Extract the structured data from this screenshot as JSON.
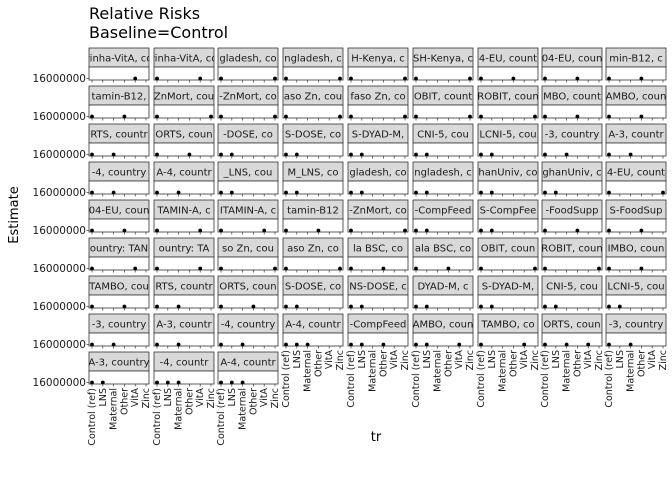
{
  "chart_data": {
    "type": "scatter",
    "title": "Relative Risks",
    "subtitle": "Baseline=Control",
    "xlabel": "tr",
    "ylabel": "Estimate",
    "x_categories": [
      "Control (ref)",
      "LNS",
      "Maternal",
      "Other",
      "VitA",
      "Zinc"
    ],
    "y_tick_label": "16000000",
    "grid": false,
    "legend": "none",
    "panels": [
      {
        "strip": "rinha-VitA, co",
        "points": [
          {
            "x": "VitA",
            "y": 16000000
          }
        ]
      },
      {
        "strip": "rinha-VitA, co",
        "points": [
          {
            "x": "Control (ref)",
            "y": 16000000
          },
          {
            "x": "VitA",
            "y": 16000000
          }
        ]
      },
      {
        "strip": "gladesh, co",
        "points": [
          {
            "x": "Control (ref)",
            "y": 16000000
          },
          {
            "x": "Zinc",
            "y": 16000000
          }
        ]
      },
      {
        "strip": "ngladesh, c",
        "points": [
          {
            "x": "Control (ref)",
            "y": 16000000
          },
          {
            "x": "Zinc",
            "y": 16000000
          }
        ]
      },
      {
        "strip": "H-Kenya, c",
        "points": [
          {
            "x": "Control (ref)",
            "y": 16000000
          },
          {
            "x": "Zinc",
            "y": 16000000
          }
        ]
      },
      {
        "strip": "SH-Kenya, c",
        "points": [
          {
            "x": "Control (ref)",
            "y": 16000000
          },
          {
            "x": "Zinc",
            "y": 16000000
          }
        ]
      },
      {
        "strip": "4-EU, count",
        "points": [
          {
            "x": "Control (ref)",
            "y": 16000000
          },
          {
            "x": "Other",
            "y": 16000000
          }
        ]
      },
      {
        "strip": "04-EU, coun",
        "points": [
          {
            "x": "Control (ref)",
            "y": 16000000
          },
          {
            "x": "Other",
            "y": 16000000
          }
        ]
      },
      {
        "strip": "min-B12, c",
        "points": [
          {
            "x": "Control (ref)",
            "y": 16000000
          },
          {
            "x": "Other",
            "y": 16000000
          }
        ]
      },
      {
        "strip": "tamin-B12,",
        "points": [
          {
            "x": "Control (ref)",
            "y": 16000000
          },
          {
            "x": "Other",
            "y": 16000000
          }
        ]
      },
      {
        "strip": "ZnMort, cou",
        "points": [
          {
            "x": "Control (ref)",
            "y": 16000000
          },
          {
            "x": "Zinc",
            "y": 16000000
          }
        ]
      },
      {
        "strip": "-ZnMort, co",
        "points": [
          {
            "x": "Control (ref)",
            "y": 16000000
          },
          {
            "x": "Zinc",
            "y": 16000000
          }
        ]
      },
      {
        "strip": "aso Zn, cou",
        "points": [
          {
            "x": "Control (ref)",
            "y": 16000000
          },
          {
            "x": "Zinc",
            "y": 16000000
          }
        ]
      },
      {
        "strip": "faso Zn, co",
        "points": [
          {
            "x": "Control (ref)",
            "y": 16000000
          },
          {
            "x": "Zinc",
            "y": 16000000
          }
        ]
      },
      {
        "strip": "OBIT, count",
        "points": [
          {
            "x": "Control (ref)",
            "y": 16000000
          },
          {
            "x": "Zinc",
            "y": 16000000
          }
        ]
      },
      {
        "strip": "ROBIT, coun",
        "points": [
          {
            "x": "Control (ref)",
            "y": 16000000
          },
          {
            "x": "Zinc",
            "y": 16000000
          }
        ]
      },
      {
        "strip": "MBO, count",
        "points": [
          {
            "x": "Control (ref)",
            "y": 16000000
          },
          {
            "x": "Other",
            "y": 16000000
          }
        ]
      },
      {
        "strip": "AMBO, coun",
        "points": [
          {
            "x": "Control (ref)",
            "y": 16000000
          },
          {
            "x": "Other",
            "y": 16000000
          }
        ]
      },
      {
        "strip": "RTS, countr",
        "points": [
          {
            "x": "Control (ref)",
            "y": 16000000
          },
          {
            "x": "Maternal",
            "y": 16000000
          }
        ]
      },
      {
        "strip": "ORTS, coun",
        "points": [
          {
            "x": "Control (ref)",
            "y": 16000000
          },
          {
            "x": "Other",
            "y": 16000000
          }
        ]
      },
      {
        "strip": "-DOSE, co",
        "points": [
          {
            "x": "Control (ref)",
            "y": 16000000
          },
          {
            "x": "LNS",
            "y": 16000000
          }
        ]
      },
      {
        "strip": "S-DOSE, co",
        "points": [
          {
            "x": "Control (ref)",
            "y": 16000000
          },
          {
            "x": "LNS",
            "y": 16000000
          }
        ]
      },
      {
        "strip": "S-DYAD-M,",
        "points": [
          {
            "x": "Control (ref)",
            "y": 16000000
          },
          {
            "x": "LNS",
            "y": 16000000
          }
        ]
      },
      {
        "strip": "CNI-5, cou",
        "points": [
          {
            "x": "Control (ref)",
            "y": 16000000
          },
          {
            "x": "LNS",
            "y": 16000000
          }
        ]
      },
      {
        "strip": "LCNI-5, cou",
        "points": [
          {
            "x": "Control (ref)",
            "y": 16000000
          },
          {
            "x": "LNS",
            "y": 16000000
          }
        ]
      },
      {
        "strip": "-3, country",
        "points": [
          {
            "x": "Control (ref)",
            "y": 16000000
          },
          {
            "x": "Maternal",
            "y": 16000000
          }
        ]
      },
      {
        "strip": "A-3, countr",
        "points": [
          {
            "x": "Control (ref)",
            "y": 16000000
          },
          {
            "x": "Maternal",
            "y": 16000000
          }
        ]
      },
      {
        "strip": "-4, country",
        "points": [
          {
            "x": "Control (ref)",
            "y": 16000000
          },
          {
            "x": "Maternal",
            "y": 16000000
          }
        ]
      },
      {
        "strip": "A-4, countr",
        "points": [
          {
            "x": "Control (ref)",
            "y": 16000000
          },
          {
            "x": "Maternal",
            "y": 16000000
          }
        ]
      },
      {
        "strip": "_LNS, cou",
        "points": [
          {
            "x": "Control (ref)",
            "y": 16000000
          },
          {
            "x": "LNS",
            "y": 16000000
          }
        ]
      },
      {
        "strip": "M_LNS, co",
        "points": [
          {
            "x": "Control (ref)",
            "y": 16000000
          },
          {
            "x": "LNS",
            "y": 16000000
          }
        ]
      },
      {
        "strip": "gladesh, co",
        "points": [
          {
            "x": "Control (ref)",
            "y": 16000000
          },
          {
            "x": "LNS",
            "y": 16000000
          }
        ]
      },
      {
        "strip": "ngladesh, c",
        "points": [
          {
            "x": "Control (ref)",
            "y": 16000000
          },
          {
            "x": "LNS",
            "y": 16000000
          }
        ]
      },
      {
        "strip": "hanUniv, co",
        "points": [
          {
            "x": "Control (ref)",
            "y": 16000000
          },
          {
            "x": "LNS",
            "y": 16000000
          }
        ]
      },
      {
        "strip": "ghanUniv, c",
        "points": [
          {
            "x": "Control (ref)",
            "y": 16000000
          },
          {
            "x": "LNS",
            "y": 16000000
          }
        ]
      },
      {
        "strip": "4-EU, count",
        "points": [
          {
            "x": "Control (ref)",
            "y": 16000000
          },
          {
            "x": "Zinc",
            "y": 16000000
          }
        ]
      },
      {
        "strip": "04-EU, coun",
        "points": [
          {
            "x": "Control (ref)",
            "y": 16000000
          },
          {
            "x": "Other",
            "y": 16000000
          }
        ]
      },
      {
        "strip": "TAMIN-A, c",
        "points": [
          {
            "x": "Control (ref)",
            "y": 16000000
          },
          {
            "x": "VitA",
            "y": 16000000
          }
        ]
      },
      {
        "strip": "ITAMIN-A, c",
        "points": [
          {
            "x": "Control (ref)",
            "y": 16000000
          },
          {
            "x": "VitA",
            "y": 16000000
          }
        ]
      },
      {
        "strip": "tamin-B12",
        "points": [
          {
            "x": "Control (ref)",
            "y": 16000000
          },
          {
            "x": "Other",
            "y": 16000000
          }
        ]
      },
      {
        "strip": "-ZnMort, co",
        "points": [
          {
            "x": "Control (ref)",
            "y": 16000000
          },
          {
            "x": "Zinc",
            "y": 16000000
          }
        ]
      },
      {
        "strip": "-CompFeed",
        "points": [
          {
            "x": "Control (ref)",
            "y": 16000000
          },
          {
            "x": "LNS",
            "y": 16000000
          }
        ]
      },
      {
        "strip": "S-CompFee",
        "points": [
          {
            "x": "Control (ref)",
            "y": 16000000
          },
          {
            "x": "LNS",
            "y": 16000000
          }
        ]
      },
      {
        "strip": "-FoodSupp",
        "points": [
          {
            "x": "Control (ref)",
            "y": 16000000
          },
          {
            "x": "Other",
            "y": 16000000
          }
        ]
      },
      {
        "strip": "S-FoodSup",
        "points": [
          {
            "x": "Control (ref)",
            "y": 16000000
          },
          {
            "x": "Other",
            "y": 16000000
          }
        ]
      },
      {
        "strip": "ountry: TAN",
        "points": [
          {
            "x": "Control (ref)",
            "y": 16000000
          },
          {
            "x": "VitA",
            "y": 16000000
          }
        ]
      },
      {
        "strip": "ountry: TA",
        "points": [
          {
            "x": "Control (ref)",
            "y": 16000000
          },
          {
            "x": "VitA",
            "y": 16000000
          }
        ]
      },
      {
        "strip": "so Zn, cou",
        "points": [
          {
            "x": "Control (ref)",
            "y": 16000000
          },
          {
            "x": "Zinc",
            "y": 16000000
          }
        ]
      },
      {
        "strip": "aso Zn, co",
        "points": [
          {
            "x": "Control (ref)",
            "y": 16000000
          },
          {
            "x": "Zinc",
            "y": 16000000
          }
        ]
      },
      {
        "strip": "la BSC, co",
        "points": [
          {
            "x": "Control (ref)",
            "y": 16000000
          },
          {
            "x": "Other",
            "y": 16000000
          }
        ]
      },
      {
        "strip": "ala BSC, co",
        "points": [
          {
            "x": "Control (ref)",
            "y": 16000000
          },
          {
            "x": "Other",
            "y": 16000000
          }
        ]
      },
      {
        "strip": "OBIT, coun",
        "points": [
          {
            "x": "Control (ref)",
            "y": 16000000
          },
          {
            "x": "Zinc",
            "y": 16000000
          }
        ]
      },
      {
        "strip": "ROBIT, coun",
        "points": [
          {
            "x": "Control (ref)",
            "y": 16000000
          },
          {
            "x": "Zinc",
            "y": 16000000
          }
        ]
      },
      {
        "strip": "IMBO, coun",
        "points": [
          {
            "x": "Control (ref)",
            "y": 16000000
          },
          {
            "x": "Other",
            "y": 16000000
          }
        ]
      },
      {
        "strip": "TAMBO, cou",
        "points": [
          {
            "x": "Control (ref)",
            "y": 16000000
          },
          {
            "x": "Other",
            "y": 16000000
          }
        ]
      },
      {
        "strip": "RTS, countr",
        "points": [
          {
            "x": "Control (ref)",
            "y": 16000000
          },
          {
            "x": "Maternal",
            "y": 16000000
          }
        ]
      },
      {
        "strip": "ORTS, coun",
        "points": [
          {
            "x": "Control (ref)",
            "y": 16000000
          },
          {
            "x": "Other",
            "y": 16000000
          }
        ]
      },
      {
        "strip": "S-DOSE, co",
        "points": [
          {
            "x": "Control (ref)",
            "y": 16000000
          },
          {
            "x": "LNS",
            "y": 16000000
          }
        ]
      },
      {
        "strip": "NS-DOSE, c",
        "points": [
          {
            "x": "Control (ref)",
            "y": 16000000
          },
          {
            "x": "LNS",
            "y": 16000000
          }
        ]
      },
      {
        "strip": "DYAD-M, c",
        "points": [
          {
            "x": "Control (ref)",
            "y": 16000000
          },
          {
            "x": "LNS",
            "y": 16000000
          }
        ]
      },
      {
        "strip": "S-DYAD-M,",
        "points": [
          {
            "x": "Control (ref)",
            "y": 16000000
          },
          {
            "x": "LNS",
            "y": 16000000
          }
        ]
      },
      {
        "strip": "CNI-5, cou",
        "points": [
          {
            "x": "Control (ref)",
            "y": 16000000
          },
          {
            "x": "LNS",
            "y": 16000000
          }
        ]
      },
      {
        "strip": "LCNI-5, cou",
        "points": [
          {
            "x": "Control (ref)",
            "y": 16000000
          },
          {
            "x": "LNS",
            "y": 16000000
          }
        ]
      },
      {
        "strip": "-3, country",
        "points": [
          {
            "x": "Control (ref)",
            "y": 16000000
          },
          {
            "x": "Maternal",
            "y": 16000000
          }
        ]
      },
      {
        "strip": "A-3, countr",
        "points": [
          {
            "x": "Control (ref)",
            "y": 16000000
          },
          {
            "x": "Maternal",
            "y": 16000000
          }
        ]
      },
      {
        "strip": "-4, country",
        "points": [
          {
            "x": "Control (ref)",
            "y": 16000000
          },
          {
            "x": "Maternal",
            "y": 16000000
          }
        ]
      },
      {
        "strip": "A-4, countr",
        "points": [
          {
            "x": "Control (ref)",
            "y": 16000000
          },
          {
            "x": "LNS",
            "y": 16000000
          },
          {
            "x": "Maternal",
            "y": 16000000
          }
        ]
      },
      {
        "strip": "-CompFeed",
        "points": [
          {
            "x": "Control (ref)",
            "y": 16000000
          },
          {
            "x": "LNS",
            "y": 16000000
          },
          {
            "x": "Other",
            "y": 16000000
          }
        ]
      },
      {
        "strip": "AMBO, coun",
        "points": [
          {
            "x": "Control (ref)",
            "y": 16000000
          },
          {
            "x": "LNS",
            "y": 16000000
          },
          {
            "x": "VitA",
            "y": 16000000
          }
        ]
      },
      {
        "strip": "TAMBO, co",
        "points": [
          {
            "x": "Control (ref)",
            "y": 16000000
          },
          {
            "x": "VitA",
            "y": 16000000
          }
        ]
      },
      {
        "strip": "ORTS, coun",
        "points": [
          {
            "x": "Control (ref)",
            "y": 16000000
          },
          {
            "x": "Maternal",
            "y": 16000000
          },
          {
            "x": "VitA",
            "y": 16000000
          }
        ]
      },
      {
        "strip": "-3, country",
        "points": [
          {
            "x": "Control (ref)",
            "y": 16000000
          },
          {
            "x": "Maternal",
            "y": 16000000
          }
        ]
      },
      {
        "strip": "A-3, country",
        "points": [
          {
            "x": "Control (ref)",
            "y": 16000000
          },
          {
            "x": "LNS",
            "y": 16000000
          }
        ]
      },
      {
        "strip": "-4, countr",
        "points": [
          {
            "x": "Control (ref)",
            "y": 16000000
          },
          {
            "x": "LNS",
            "y": 16000000
          },
          {
            "x": "Maternal",
            "y": 16000000
          }
        ]
      },
      {
        "strip": "A-4, countr",
        "points": [
          {
            "x": "Control (ref)",
            "y": 16000000
          },
          {
            "x": "LNS",
            "y": 16000000
          },
          {
            "x": "Maternal",
            "y": 16000000
          }
        ]
      }
    ]
  }
}
